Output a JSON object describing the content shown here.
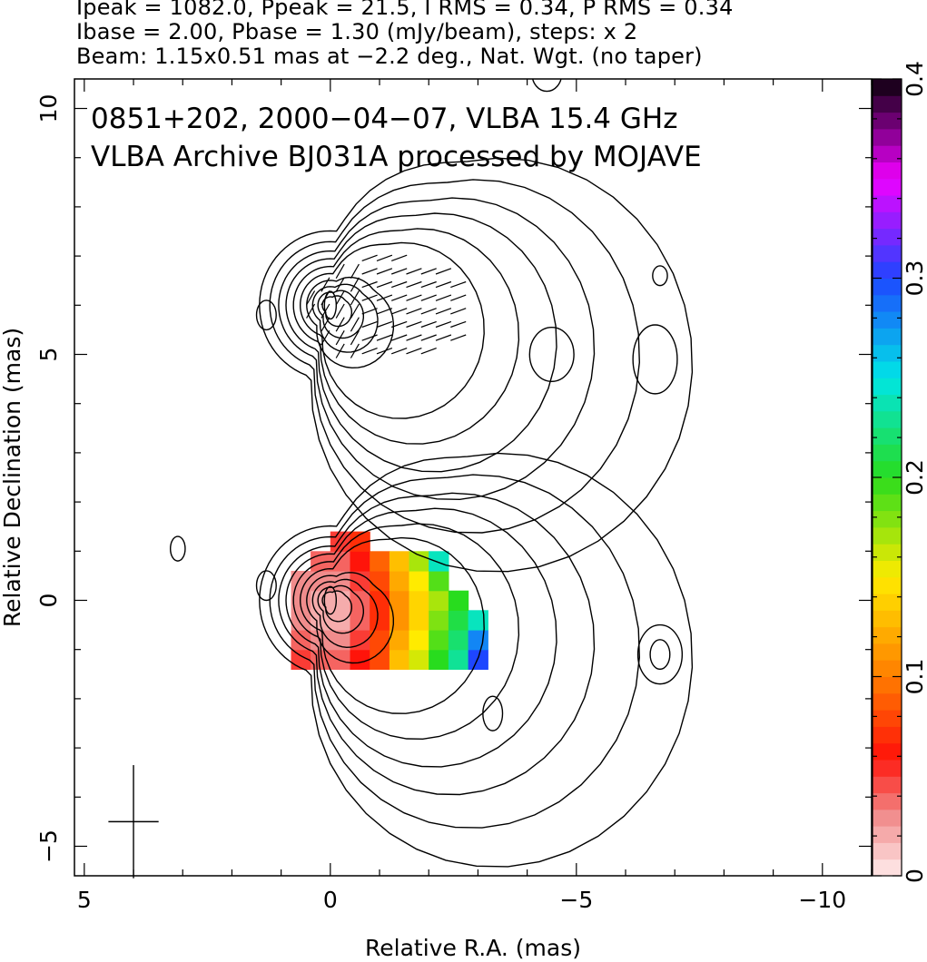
{
  "header": {
    "line1": "Ipeak = 1082.0, Ppeak = 21.5, I RMS = 0.34, P RMS = 0.34",
    "line2": "Ibase = 2.00, Pbase = 1.30 (mJy/beam), steps: x 2",
    "line3": "Beam: 1.15x0.51 mas at −2.2 deg., Nat. Wgt. (no taper)"
  },
  "chart_data": {
    "type": "heatmap",
    "title": "0851+202, 2000−04−07, VLBA 15.4 GHz",
    "subtitle": "VLBA Archive BJ031A processed by MOJAVE",
    "xlabel": "Relative R.A. (mas)",
    "ylabel": "Relative Declination (mas)",
    "xlim": [
      5.2,
      -11.0
    ],
    "ylim": [
      -5.6,
      10.6
    ],
    "x_ticks": [
      5,
      0,
      -5,
      -10
    ],
    "x_tick_labels": [
      "5",
      "0",
      "−5",
      "−10"
    ],
    "y_ticks": [
      -5,
      0,
      5,
      10
    ],
    "y_tick_labels": [
      "−5",
      "0",
      "5",
      "10"
    ],
    "colorbar": {
      "range": [
        0,
        0.4
      ],
      "ticks": [
        0,
        0.1,
        0.2,
        0.3,
        0.4
      ],
      "tick_labels": [
        "0",
        "0.1",
        "0.2",
        "0.3",
        "0.4"
      ]
    },
    "beam": {
      "major_mas": 1.15,
      "minor_mas": 0.51,
      "pa_deg": -2.2,
      "center": [
        4.0,
        -4.5
      ]
    },
    "fractional_polarization_map": {
      "x_cells": [
        0.6,
        0.2,
        -0.2,
        -0.6,
        -1.0,
        -1.4,
        -1.8,
        -2.2,
        -2.6,
        -3.0
      ],
      "y_cells": [
        -1.2,
        -0.8,
        -0.4,
        0.0,
        0.4,
        0.8,
        1.2
      ],
      "values": [
        [
          0.05,
          0.04,
          0.04,
          0.06,
          0.08,
          0.13,
          0.16,
          0.2,
          0.23,
          0.3
        ],
        [
          0.04,
          0.03,
          0.03,
          0.05,
          0.08,
          0.12,
          0.15,
          0.19,
          0.22,
          0.28
        ],
        [
          0.03,
          0.02,
          0.02,
          0.04,
          0.07,
          0.11,
          0.14,
          0.18,
          0.21,
          0.24
        ],
        [
          0.03,
          0.02,
          0.02,
          0.04,
          0.07,
          0.11,
          0.14,
          0.17,
          0.2,
          null
        ],
        [
          0.03,
          0.03,
          0.03,
          0.05,
          0.08,
          0.12,
          0.15,
          0.19,
          null,
          null
        ],
        [
          null,
          0.04,
          0.04,
          0.06,
          0.09,
          0.13,
          0.17,
          0.24,
          null,
          null
        ],
        [
          null,
          null,
          0.05,
          0.07,
          null,
          null,
          null,
          null,
          null,
          null
        ]
      ]
    },
    "components": [
      {
        "name": "",
        "x": 0.0,
        "y": 6.0
      },
      {
        "name": "",
        "x": 0.0,
        "y": 0.0
      }
    ]
  }
}
